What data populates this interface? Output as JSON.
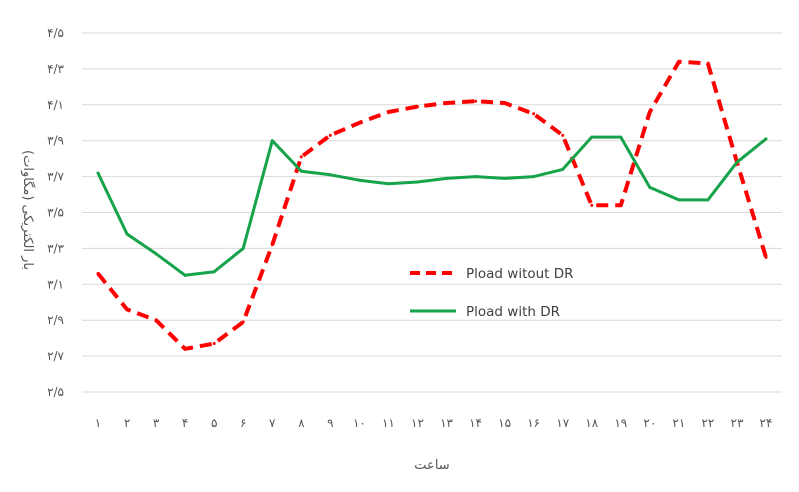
{
  "chart_data": {
    "type": "line",
    "title": "",
    "xlabel": "ساعت",
    "ylabel": "بار الکتریکی (مگاوات)",
    "ylim": [
      2.5,
      4.5
    ],
    "y_ticks": [
      {
        "value": 2.5,
        "label": "۲/۵"
      },
      {
        "value": 2.7,
        "label": "۲/۷"
      },
      {
        "value": 2.9,
        "label": "۲/۹"
      },
      {
        "value": 3.1,
        "label": "۳/۱"
      },
      {
        "value": 3.3,
        "label": "۳/۳"
      },
      {
        "value": 3.5,
        "label": "۳/۵"
      },
      {
        "value": 3.7,
        "label": "۳/۷"
      },
      {
        "value": 3.9,
        "label": "۳/۹"
      },
      {
        "value": 4.1,
        "label": "۴/۱"
      },
      {
        "value": 4.3,
        "label": "۴/۳"
      },
      {
        "value": 4.5,
        "label": "۴/۵"
      }
    ],
    "categories": [
      "۱",
      "۲",
      "۳",
      "۴",
      "۵",
      "۶",
      "۷",
      "۸",
      "۹",
      "۱۰",
      "۱۱",
      "۱۲",
      "۱۳",
      "۱۴",
      "۱۵",
      "۱۶",
      "۱۷",
      "۱۸",
      "۱۹",
      "۲۰",
      "۲۱",
      "۲۲",
      "۲۳",
      "۲۴"
    ],
    "grid": true,
    "legend_position": "center-right",
    "series": [
      {
        "name": "Pload witout DR",
        "color": "#ff0000",
        "style": "dashed",
        "values": [
          3.16,
          2.96,
          2.9,
          2.74,
          2.77,
          2.89,
          3.32,
          3.81,
          3.93,
          4.0,
          4.06,
          4.09,
          4.11,
          4.12,
          4.11,
          4.05,
          3.93,
          3.54,
          3.54,
          4.06,
          4.34,
          4.33,
          3.78,
          3.25
        ]
      },
      {
        "name": "Pload with DR",
        "color": "#16a34a",
        "style": "solid",
        "values": [
          3.72,
          3.38,
          3.27,
          3.15,
          3.17,
          3.3,
          3.9,
          3.73,
          3.71,
          3.68,
          3.66,
          3.67,
          3.69,
          3.7,
          3.69,
          3.7,
          3.74,
          3.92,
          3.92,
          3.64,
          3.57,
          3.57,
          3.78,
          3.91
        ]
      }
    ]
  }
}
